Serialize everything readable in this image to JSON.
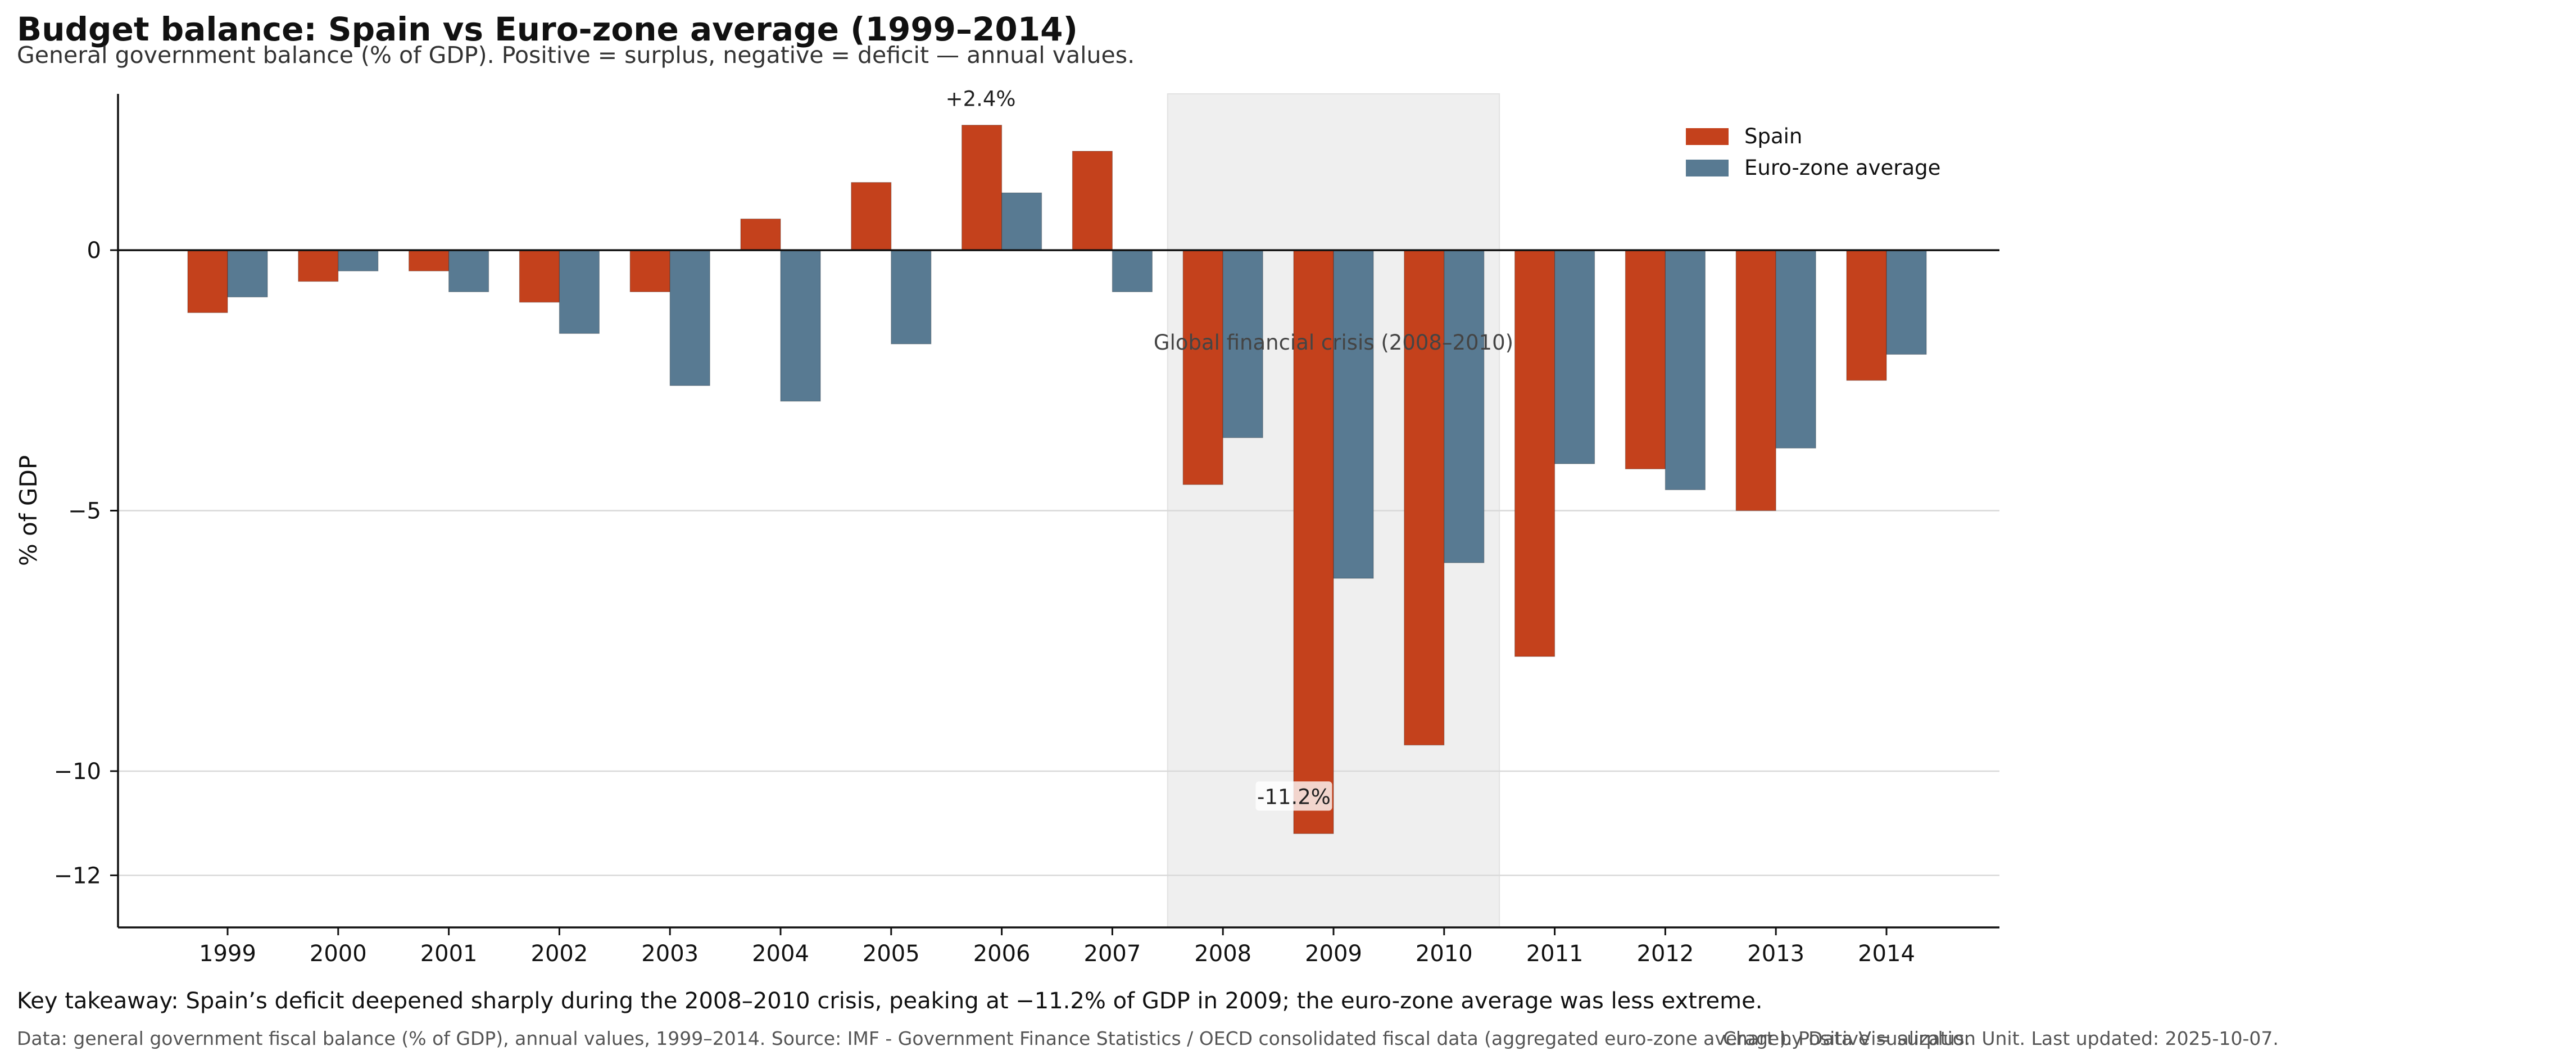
{
  "title": "Budget balance: Spain vs Euro-zone average (1999–2014)",
  "subtitle": "General government balance (% of GDP). Positive = surplus, negative = deficit — annual values.",
  "takeaway": "Key takeaway: Spain’s deficit deepened sharply during the 2008–2010 crisis, peaking at −11.2% of GDP in 2009; the euro-zone average was less extreme.",
  "footer": "Data: general government fiscal balance (% of GDP), annual values, 1999–2014. Source: IMF - Government Finance Statistics / OECD consolidated fiscal data (aggregated euro-zone average). Positive = surplus.",
  "credit": "Chart by Data Visualization Unit. Last updated: 2025-10-07.",
  "colors": {
    "spain": "#c4411c",
    "eurozone": "#587a92",
    "shade": "#efefef"
  },
  "chart_data": {
    "type": "bar",
    "categories": [
      "1999",
      "2000",
      "2001",
      "2002",
      "2003",
      "2004",
      "2005",
      "2006",
      "2007",
      "2008",
      "2009",
      "2010",
      "2011",
      "2012",
      "2013",
      "2014"
    ],
    "series": [
      {
        "name": "Spain",
        "values": [
          -1.2,
          -0.6,
          -0.4,
          -1.0,
          -0.8,
          0.6,
          1.3,
          2.4,
          1.9,
          -4.5,
          -11.2,
          -9.5,
          -7.8,
          -4.2,
          -5.0,
          -2.5
        ]
      },
      {
        "name": "Euro-zone average",
        "values": [
          -0.9,
          -0.4,
          -0.8,
          -1.6,
          -2.6,
          -2.9,
          -1.8,
          1.1,
          -0.8,
          -3.6,
          -6.3,
          -6.0,
          -4.1,
          -4.6,
          -3.8,
          -2.0
        ]
      }
    ],
    "ylabel": "% of GDP",
    "xlabel": "",
    "ylim": [
      -13,
      3
    ],
    "yticks": [
      0,
      -5,
      -10,
      -12
    ],
    "ytick_labels": [
      "0",
      "−5",
      "−10",
      "−12"
    ],
    "grid": "horizontal",
    "legend": "top-right",
    "annotations": [
      {
        "text": "+2.4%",
        "x": "2006",
        "y": 2.4
      },
      {
        "text": "-11.2%",
        "x": "2009",
        "y": -11.2
      },
      {
        "text": "Global financial crisis (2008–2010)",
        "x": "2009",
        "y": -1.8
      }
    ],
    "shaded_region": {
      "from": "2008",
      "to": "2010"
    }
  }
}
